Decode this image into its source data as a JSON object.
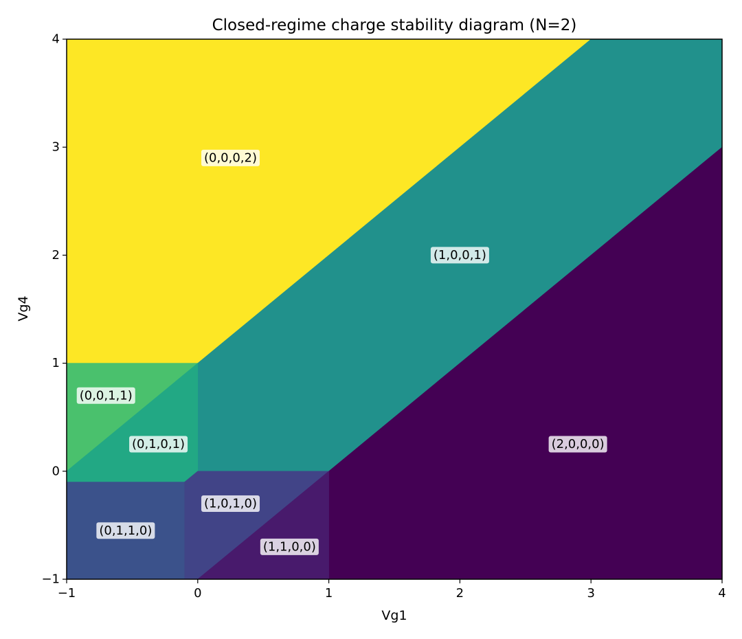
{
  "chart_data": {
    "type": "heatmap",
    "title": "Closed-regime charge stability diagram (N=2)",
    "xlabel": "Vg1",
    "ylabel": "Vg4",
    "xlim": [
      -1,
      4
    ],
    "ylim": [
      -1,
      4
    ],
    "xticks": [
      "−1",
      "0",
      "1",
      "2",
      "3",
      "4"
    ],
    "yticks": [
      "−1",
      "0",
      "1",
      "2",
      "3",
      "4"
    ],
    "grid": false,
    "colors": {
      "(0,0,0,2)": "#fde725",
      "(1,0,0,1)": "#21918c",
      "(2,0,0,0)": "#440154",
      "(0,0,1,1)": "#4ac16d",
      "(0,1,0,1)": "#22a884",
      "(0,1,1,0)": "#3b528b",
      "(1,0,1,0)": "#414487",
      "(1,1,0,0)": "#481a6c"
    },
    "regions": [
      {
        "label": "(0,0,0,2)",
        "polygon": [
          [
            -1,
            1
          ],
          [
            -1,
            4
          ],
          [
            3,
            4
          ],
          [
            0,
            1
          ]
        ],
        "label_pos": [
          0.25,
          2.9
        ]
      },
      {
        "label": "(1,0,0,1)",
        "polygon": [
          [
            0,
            1
          ],
          [
            3,
            4
          ],
          [
            4,
            4
          ],
          [
            4,
            3
          ],
          [
            1,
            0
          ],
          [
            0,
            0
          ]
        ],
        "label_pos": [
          2.0,
          2.0
        ]
      },
      {
        "label": "(2,0,0,0)",
        "polygon": [
          [
            1,
            0
          ],
          [
            4,
            3
          ],
          [
            4,
            -1
          ],
          [
            1,
            -1
          ]
        ],
        "label_pos": [
          2.9,
          0.25
        ]
      },
      {
        "label": "(0,0,1,1)",
        "polygon": [
          [
            -1,
            0
          ],
          [
            -1,
            1
          ],
          [
            0,
            1
          ]
        ],
        "label_pos": [
          -0.7,
          0.7
        ]
      },
      {
        "label": "(0,1,0,1)",
        "polygon": [
          [
            -1,
            0
          ],
          [
            0,
            1
          ],
          [
            0,
            0
          ],
          [
            -0.1,
            -0.1
          ],
          [
            -1,
            -0.1
          ]
        ],
        "label_pos": [
          -0.3,
          0.25
        ]
      },
      {
        "label": "(0,1,1,0)",
        "polygon": [
          [
            -1,
            -0.1
          ],
          [
            -0.1,
            -0.1
          ],
          [
            -0.1,
            -1
          ],
          [
            -1,
            -1
          ]
        ],
        "label_pos": [
          -0.55,
          -0.55
        ]
      },
      {
        "label": "(1,0,1,0)",
        "polygon": [
          [
            -0.1,
            -0.1
          ],
          [
            0,
            0
          ],
          [
            1,
            0
          ],
          [
            0,
            -1
          ],
          [
            -0.1,
            -1
          ]
        ],
        "label_pos": [
          0.25,
          -0.3
        ]
      },
      {
        "label": "(1,1,0,0)",
        "polygon": [
          [
            0,
            -1
          ],
          [
            1,
            0
          ],
          [
            1,
            -1
          ]
        ],
        "label_pos": [
          0.7,
          -0.7
        ]
      }
    ]
  }
}
